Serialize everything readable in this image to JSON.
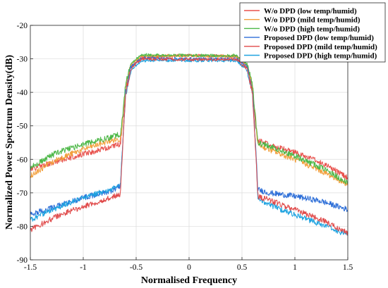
{
  "chart_data": {
    "type": "line",
    "title": "",
    "xlabel": "Normalised Frequency",
    "ylabel": "Normalized Power Spectrum Density(dB)",
    "xlim": [
      -1.5,
      1.5
    ],
    "ylim": [
      -90,
      -20
    ],
    "xticks": [
      -1.5,
      -1,
      -0.5,
      0,
      0.5,
      1,
      1.5
    ],
    "xtick_labels": [
      "-1.5",
      "-1",
      "-0.5",
      "0",
      "0.5",
      "1",
      "1.5"
    ],
    "yticks": [
      -90,
      -80,
      -70,
      -60,
      -50,
      -40,
      -30,
      -20
    ],
    "ytick_labels": [
      "-90",
      "-80",
      "-70",
      "-60",
      "-50",
      "-40",
      "-30",
      "-20"
    ],
    "grid": true,
    "legend_position": "top-right",
    "series": [
      {
        "name": "W/o DPD (low temp/humid)",
        "color": "#e8504b",
        "x": [
          -1.5,
          -1.25,
          -1.0,
          -0.75,
          -0.65,
          -0.63,
          -0.6,
          -0.55,
          -0.45,
          0.0,
          0.45,
          0.55,
          0.6,
          0.63,
          0.65,
          0.75,
          1.0,
          1.25,
          1.5
        ],
        "y": [
          -63.0,
          -60.5,
          -58.5,
          -56.5,
          -55.5,
          -50.0,
          -38.5,
          -32.5,
          -29.5,
          -29.0,
          -29.3,
          -32.5,
          -39.0,
          -50.0,
          -54.5,
          -55.5,
          -58.0,
          -61.0,
          -65.5
        ]
      },
      {
        "name": "W/o DPD (mild temp/humid)",
        "color": "#f2a03d",
        "x": [
          -1.5,
          -1.25,
          -1.0,
          -0.75,
          -0.65,
          -0.63,
          -0.6,
          -0.55,
          -0.45,
          0.0,
          0.45,
          0.55,
          0.6,
          0.63,
          0.65,
          0.75,
          1.0,
          1.25,
          1.5
        ],
        "y": [
          -65.0,
          -60.0,
          -57.0,
          -54.5,
          -54.0,
          -49.0,
          -38.0,
          -32.0,
          -29.2,
          -29.0,
          -29.3,
          -32.0,
          -38.5,
          -49.0,
          -55.5,
          -57.0,
          -60.0,
          -63.5,
          -67.5
        ]
      },
      {
        "name": "W/o DPD (high temp/humid)",
        "color": "#4db848",
        "x": [
          -1.5,
          -1.25,
          -1.0,
          -0.75,
          -0.65,
          -0.63,
          -0.6,
          -0.55,
          -0.45,
          0.0,
          0.45,
          0.55,
          0.6,
          0.63,
          0.65,
          0.75,
          1.0,
          1.25,
          1.5
        ],
        "y": [
          -62.5,
          -58.0,
          -55.5,
          -53.5,
          -52.5,
          -48.0,
          -37.5,
          -31.5,
          -28.8,
          -29.0,
          -29.0,
          -31.5,
          -38.0,
          -48.5,
          -55.0,
          -56.0,
          -59.0,
          -62.5,
          -67.0
        ]
      },
      {
        "name": "Proposed DPD (low temp/humid)",
        "color": "#2e6fd8",
        "x": [
          -1.5,
          -1.25,
          -1.0,
          -0.75,
          -0.65,
          -0.63,
          -0.6,
          -0.55,
          -0.45,
          0.0,
          0.45,
          0.55,
          0.6,
          0.63,
          0.65,
          0.75,
          1.0,
          1.25,
          1.5
        ],
        "y": [
          -76.5,
          -74.0,
          -71.5,
          -69.5,
          -68.0,
          -57.0,
          -40.0,
          -32.5,
          -29.8,
          -30.0,
          -30.0,
          -32.5,
          -40.0,
          -57.0,
          -69.0,
          -70.0,
          -71.0,
          -72.5,
          -75.0
        ]
      },
      {
        "name": "Proposed DPD (mild temp/humid)",
        "color": "#e04a4a",
        "x": [
          -1.5,
          -1.25,
          -1.0,
          -0.75,
          -0.65,
          -0.63,
          -0.6,
          -0.55,
          -0.45,
          0.0,
          0.45,
          0.55,
          0.6,
          0.63,
          0.65,
          0.75,
          1.0,
          1.25,
          1.5
        ],
        "y": [
          -81.0,
          -77.0,
          -74.0,
          -71.5,
          -70.5,
          -58.0,
          -40.5,
          -33.0,
          -30.0,
          -30.2,
          -30.2,
          -33.0,
          -40.5,
          -58.0,
          -71.0,
          -72.0,
          -75.0,
          -78.0,
          -82.0
        ]
      },
      {
        "name": "Proposed DPD (high temp/humid)",
        "color": "#1fa3e0",
        "x": [
          -1.5,
          -1.25,
          -1.0,
          -0.75,
          -0.65,
          -0.63,
          -0.6,
          -0.55,
          -0.45,
          0.0,
          0.45,
          0.55,
          0.6,
          0.63,
          0.65,
          0.75,
          1.0,
          1.25,
          1.5
        ],
        "y": [
          -78.0,
          -74.5,
          -71.5,
          -69.0,
          -68.0,
          -57.0,
          -41.0,
          -33.5,
          -30.5,
          -30.5,
          -30.5,
          -33.5,
          -41.0,
          -57.0,
          -71.5,
          -73.5,
          -76.5,
          -79.5,
          -82.5
        ]
      }
    ]
  }
}
